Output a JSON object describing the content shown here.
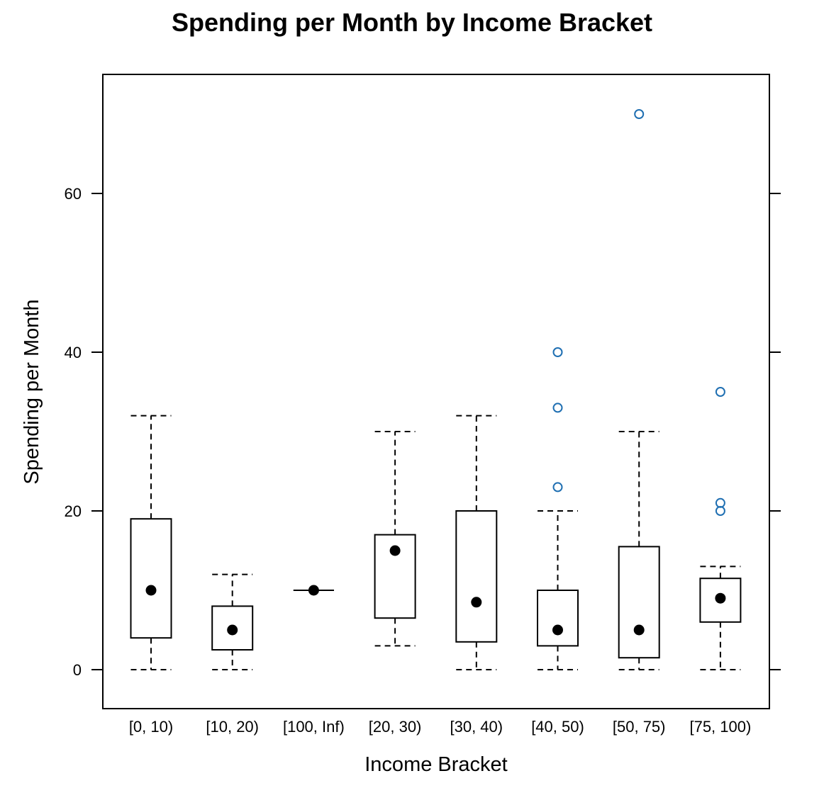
{
  "chart_data": {
    "type": "box",
    "title": "Spending per Month by Income Bracket",
    "xlabel": "Income Bracket",
    "ylabel": "Spending per Month",
    "ylim": [
      -5,
      75
    ],
    "yticks": [
      0,
      20,
      40,
      60
    ],
    "grid": false,
    "categories": [
      "[0, 10)",
      "[10, 20)",
      "[100, Inf)",
      "[20, 30)",
      "[30, 40)",
      "[40, 50)",
      "[50, 75)",
      "[75, 100)"
    ],
    "boxes": [
      {
        "category": "[0, 10)",
        "whisker_low": 0,
        "q1": 4,
        "median": 10,
        "q3": 19,
        "whisker_high": 32,
        "outliers": []
      },
      {
        "category": "[10, 20)",
        "whisker_low": 0,
        "q1": 2.5,
        "median": 5,
        "q3": 8,
        "whisker_high": 12,
        "outliers": []
      },
      {
        "category": "[100, Inf)",
        "whisker_low": 10,
        "q1": 10,
        "median": 10,
        "q3": 10,
        "whisker_high": 10,
        "outliers": []
      },
      {
        "category": "[20, 30)",
        "whisker_low": 3,
        "q1": 6.5,
        "median": 15,
        "q3": 17,
        "whisker_high": 30,
        "outliers": []
      },
      {
        "category": "[30, 40)",
        "whisker_low": 0,
        "q1": 3.5,
        "median": 8.5,
        "q3": 20,
        "whisker_high": 32,
        "outliers": []
      },
      {
        "category": "[40, 50)",
        "whisker_low": 0,
        "q1": 3,
        "median": 5,
        "q3": 10,
        "whisker_high": 20,
        "outliers": [
          23,
          33,
          40
        ]
      },
      {
        "category": "[50, 75)",
        "whisker_low": 0,
        "q1": 1.5,
        "median": 5,
        "q3": 15.5,
        "whisker_high": 30,
        "outliers": [
          70
        ]
      },
      {
        "category": "[75, 100)",
        "whisker_low": 0,
        "q1": 6,
        "median": 9,
        "q3": 11.5,
        "whisker_high": 13,
        "outliers": [
          20,
          21,
          35
        ]
      }
    ],
    "colors": {
      "box": "#000000",
      "median_dot": "#000000",
      "outlier": "#1f6fb2"
    }
  }
}
